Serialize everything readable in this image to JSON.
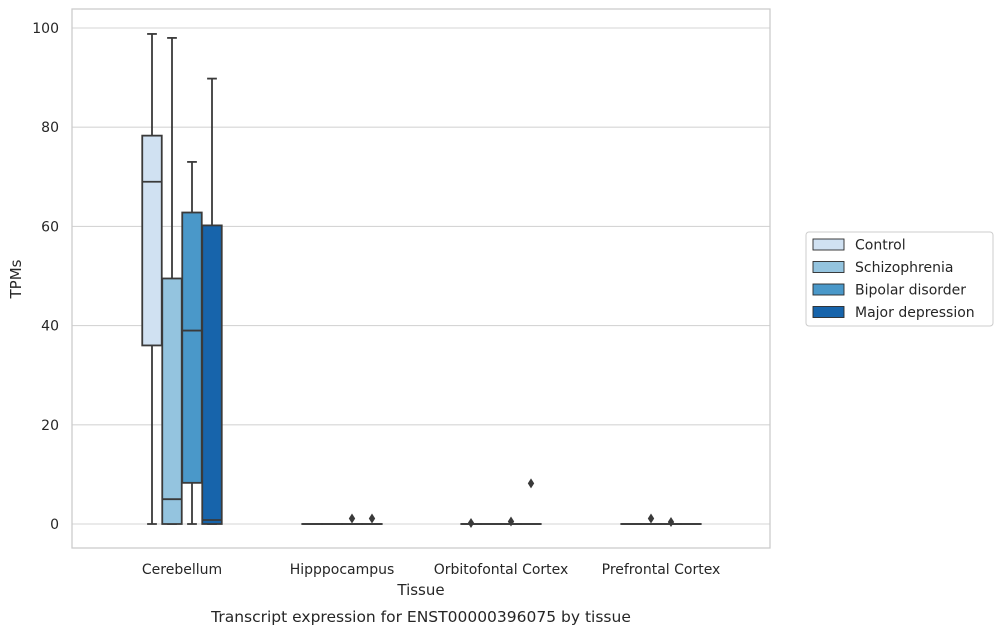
{
  "chart_data": {
    "type": "box",
    "title": "",
    "caption": "Transcript expression for ENST00000396075 by tissue",
    "xlabel": "Tissue",
    "ylabel": "TPMs",
    "ylim": [
      -5,
      104
    ],
    "yticks": [
      0,
      20,
      40,
      60,
      80,
      100
    ],
    "grid": "horizontal",
    "legend_position": "right",
    "categories": [
      "Cerebellum",
      "Hipppocampus",
      "Orbitofontal Cortex",
      "Prefrontal Cortex"
    ],
    "series": [
      {
        "name": "Control",
        "color": "#d0e1f2",
        "boxes": [
          {
            "whisker_low": 0,
            "q1": 36,
            "median": 69,
            "q3": 78.3,
            "whisker_high": 98.8,
            "outliers": []
          },
          {
            "whisker_low": 0,
            "q1": 0,
            "median": 0,
            "q3": 0,
            "whisker_high": 0,
            "outliers": []
          },
          {
            "whisker_low": 0,
            "q1": 0,
            "median": 0,
            "q3": 0,
            "whisker_high": 0,
            "outliers": [
              0.2
            ]
          },
          {
            "whisker_low": 0,
            "q1": 0,
            "median": 0,
            "q3": 0,
            "whisker_high": 0,
            "outliers": []
          }
        ]
      },
      {
        "name": "Schizophrenia",
        "color": "#94c4df",
        "boxes": [
          {
            "whisker_low": 0,
            "q1": 0,
            "median": 5,
            "q3": 49.5,
            "whisker_high": 98,
            "outliers": []
          },
          {
            "whisker_low": 0,
            "q1": 0,
            "median": 0,
            "q3": 0,
            "whisker_high": 0,
            "outliers": []
          },
          {
            "whisker_low": 0,
            "q1": 0,
            "median": 0,
            "q3": 0,
            "whisker_high": 0,
            "outliers": []
          },
          {
            "whisker_low": 0,
            "q1": 0,
            "median": 0,
            "q3": 0,
            "whisker_high": 0,
            "outliers": [
              1.1
            ]
          }
        ]
      },
      {
        "name": "Bipolar disorder",
        "color": "#4a98c9",
        "boxes": [
          {
            "whisker_low": 0,
            "q1": 8.3,
            "median": 39,
            "q3": 62.8,
            "whisker_high": 73,
            "outliers": []
          },
          {
            "whisker_low": 0,
            "q1": 0,
            "median": 0,
            "q3": 0,
            "whisker_high": 0,
            "outliers": [
              1.1
            ]
          },
          {
            "whisker_low": 0,
            "q1": 0,
            "median": 0,
            "q3": 0,
            "whisker_high": 0,
            "outliers": [
              0.5
            ]
          },
          {
            "whisker_low": 0,
            "q1": 0,
            "median": 0,
            "q3": 0,
            "whisker_high": 0,
            "outliers": [
              0.4
            ]
          }
        ]
      },
      {
        "name": "Major depression",
        "color": "#1764ab",
        "boxes": [
          {
            "whisker_low": 0,
            "q1": 0,
            "median": 0.8,
            "q3": 60.2,
            "whisker_high": 89.8,
            "outliers": []
          },
          {
            "whisker_low": 0,
            "q1": 0,
            "median": 0,
            "q3": 0,
            "whisker_high": 0,
            "outliers": [
              1.1
            ]
          },
          {
            "whisker_low": 0,
            "q1": 0,
            "median": 0,
            "q3": 0,
            "whisker_high": 0,
            "outliers": [
              8.2
            ]
          },
          {
            "whisker_low": 0,
            "q1": 0,
            "median": 0,
            "q3": 0,
            "whisker_high": 0,
            "outliers": []
          }
        ]
      }
    ]
  }
}
